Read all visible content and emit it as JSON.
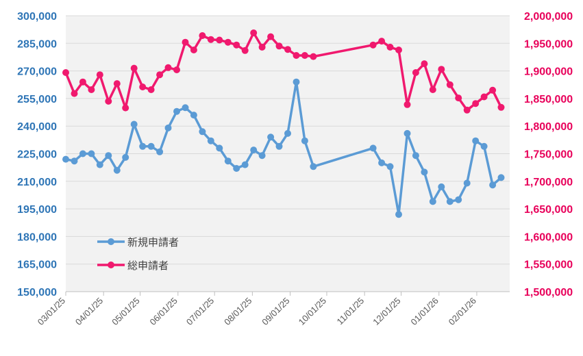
{
  "chart_data": {
    "type": "line",
    "title": "",
    "x_tick_labels": [
      "03/01/25",
      "04/01/25",
      "05/01/25",
      "06/01/25",
      "07/01/25",
      "08/01/25",
      "09/01/25",
      "10/01/25",
      "11/01/25",
      "12/01/25",
      "01/01/26",
      "02/01/26"
    ],
    "x_range": [
      "2025-03-01",
      "2026-02-28"
    ],
    "y_left": {
      "ylim": [
        150000,
        300000
      ],
      "ticks": [
        "150,000",
        "165,000",
        "180,000",
        "195,000",
        "210,000",
        "225,000",
        "240,000",
        "255,000",
        "270,000",
        "285,000",
        "300,000"
      ],
      "color": "#2E75B6"
    },
    "y_right": {
      "ylim": [
        1500000,
        2000000
      ],
      "ticks": [
        "1,500,000",
        "1,550,000",
        "1,600,000",
        "1,650,000",
        "1,700,000",
        "1,750,000",
        "1,800,000",
        "1,850,000",
        "1,900,000",
        "1,950,000",
        "2,000,000"
      ],
      "color": "#E8005A"
    },
    "grid": true,
    "legend_position": "bottom-left",
    "series": [
      {
        "name": "新規申請者",
        "axis": "left",
        "color": "#5B9BD5",
        "points": [
          [
            "2025-03-01",
            222000
          ],
          [
            "2025-03-08",
            221000
          ],
          [
            "2025-03-15",
            225000
          ],
          [
            "2025-03-22",
            225000
          ],
          [
            "2025-03-29",
            219000
          ],
          [
            "2025-04-05",
            224000
          ],
          [
            "2025-04-12",
            216000
          ],
          [
            "2025-04-19",
            223000
          ],
          [
            "2025-04-26",
            241000
          ],
          [
            "2025-05-03",
            229000
          ],
          [
            "2025-05-10",
            229000
          ],
          [
            "2025-05-17",
            226000
          ],
          [
            "2025-05-24",
            239000
          ],
          [
            "2025-05-31",
            248000
          ],
          [
            "2025-06-07",
            250000
          ],
          [
            "2025-06-14",
            246000
          ],
          [
            "2025-06-21",
            237000
          ],
          [
            "2025-06-28",
            232000
          ],
          [
            "2025-07-05",
            228000
          ],
          [
            "2025-07-12",
            221000
          ],
          [
            "2025-07-19",
            217000
          ],
          [
            "2025-07-26",
            219000
          ],
          [
            "2025-08-02",
            227000
          ],
          [
            "2025-08-09",
            224000
          ],
          [
            "2025-08-16",
            234000
          ],
          [
            "2025-08-23",
            229000
          ],
          [
            "2025-08-30",
            236000
          ],
          [
            "2025-09-06",
            264000
          ],
          [
            "2025-09-13",
            232000
          ],
          [
            "2025-09-20",
            218000
          ],
          [
            "2025-11-08",
            228000
          ],
          [
            "2025-11-15",
            220000
          ],
          [
            "2025-11-22",
            218000
          ],
          [
            "2025-11-29",
            192000
          ],
          [
            "2025-12-06",
            236000
          ],
          [
            "2025-12-13",
            224000
          ],
          [
            "2025-12-20",
            215000
          ],
          [
            "2025-12-27",
            199000
          ],
          [
            "2026-01-03",
            207000
          ],
          [
            "2026-01-10",
            199000
          ],
          [
            "2026-01-17",
            200000
          ],
          [
            "2026-01-24",
            209000
          ],
          [
            "2026-01-31",
            232000
          ],
          [
            "2026-02-07",
            229000
          ],
          [
            "2026-02-14",
            208000
          ],
          [
            "2026-02-21",
            212000
          ]
        ]
      },
      {
        "name": "総申請者",
        "axis": "right",
        "color": "#F0196E",
        "points": [
          [
            "2025-03-01",
            1897000
          ],
          [
            "2025-03-08",
            1859000
          ],
          [
            "2025-03-15",
            1880000
          ],
          [
            "2025-03-22",
            1866000
          ],
          [
            "2025-03-29",
            1893000
          ],
          [
            "2025-04-05",
            1845000
          ],
          [
            "2025-04-12",
            1877000
          ],
          [
            "2025-04-19",
            1833000
          ],
          [
            "2025-04-26",
            1905000
          ],
          [
            "2025-05-03",
            1871000
          ],
          [
            "2025-05-10",
            1866000
          ],
          [
            "2025-05-17",
            1893000
          ],
          [
            "2025-05-24",
            1906000
          ],
          [
            "2025-05-31",
            1902000
          ],
          [
            "2025-06-07",
            1952000
          ],
          [
            "2025-06-14",
            1938000
          ],
          [
            "2025-06-21",
            1964000
          ],
          [
            "2025-06-28",
            1957000
          ],
          [
            "2025-07-05",
            1956000
          ],
          [
            "2025-07-12",
            1952000
          ],
          [
            "2025-07-19",
            1947000
          ],
          [
            "2025-07-26",
            1937000
          ],
          [
            "2025-08-02",
            1969000
          ],
          [
            "2025-08-09",
            1943000
          ],
          [
            "2025-08-16",
            1962000
          ],
          [
            "2025-08-23",
            1945000
          ],
          [
            "2025-08-30",
            1939000
          ],
          [
            "2025-09-06",
            1928000
          ],
          [
            "2025-09-13",
            1928000
          ],
          [
            "2025-09-20",
            1926000
          ],
          [
            "2025-11-08",
            1947000
          ],
          [
            "2025-11-15",
            1954000
          ],
          [
            "2025-11-22",
            1943000
          ],
          [
            "2025-11-29",
            1938000
          ],
          [
            "2025-12-06",
            1839000
          ],
          [
            "2025-12-13",
            1897000
          ],
          [
            "2025-12-20",
            1913000
          ],
          [
            "2025-12-27",
            1866000
          ],
          [
            "2026-01-03",
            1903000
          ],
          [
            "2026-01-10",
            1875000
          ],
          [
            "2026-01-17",
            1851000
          ],
          [
            "2026-01-24",
            1829000
          ],
          [
            "2026-01-31",
            1841000
          ],
          [
            "2026-02-07",
            1853000
          ],
          [
            "2026-02-14",
            1865000
          ],
          [
            "2026-02-21",
            1834000
          ]
        ]
      }
    ]
  }
}
